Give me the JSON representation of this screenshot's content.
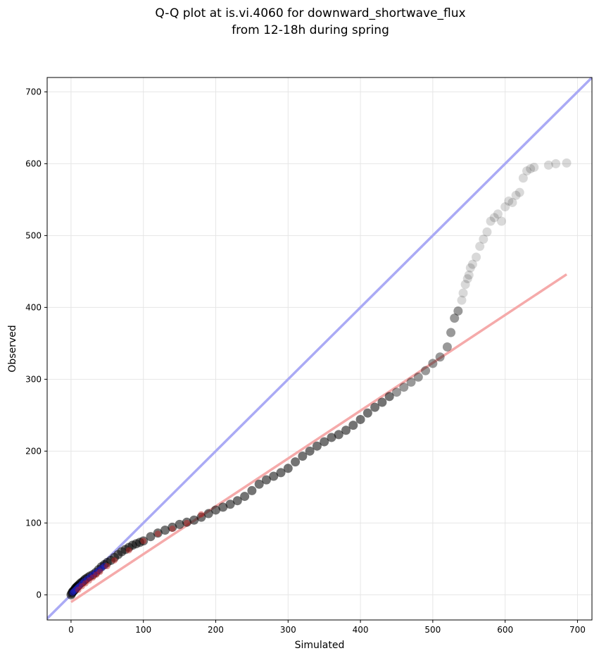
{
  "chart_data": {
    "type": "scatter",
    "title_line1": "Q-Q plot at is.vi.4060 for downward_shortwave_flux",
    "title_line2": "from 12-18h during spring",
    "xlabel": "Simulated",
    "ylabel": "Observed",
    "xlim": [
      -33,
      720
    ],
    "ylim": [
      -35,
      720
    ],
    "xticks": [
      0,
      100,
      200,
      300,
      400,
      500,
      600,
      700
    ],
    "yticks": [
      0,
      100,
      200,
      300,
      400,
      500,
      600,
      700
    ],
    "xtick_labels": [
      "0",
      "100",
      "200",
      "300",
      "400",
      "500",
      "600",
      "700"
    ],
    "ytick_labels": [
      "0",
      "100",
      "200",
      "300",
      "400",
      "500",
      "600",
      "700"
    ],
    "grid": true,
    "reference_line": {
      "x": [
        -33,
        720
      ],
      "y": [
        -33,
        720
      ],
      "color": "#aaaaf5"
    },
    "fit_line": {
      "x": [
        0,
        685
      ],
      "y": [
        -10,
        446
      ],
      "color": "#f5aaaa"
    },
    "points": {
      "x": [
        0,
        1,
        2,
        3,
        4,
        5,
        6,
        7,
        8,
        9,
        10,
        12,
        14,
        16,
        18,
        20,
        23,
        26,
        30,
        34,
        38,
        42,
        46,
        50,
        55,
        60,
        65,
        70,
        75,
        80,
        85,
        90,
        95,
        100,
        110,
        120,
        130,
        140,
        150,
        160,
        170,
        180,
        190,
        200,
        210,
        220,
        230,
        240,
        250,
        260,
        270,
        280,
        290,
        300,
        310,
        320,
        330,
        340,
        350,
        360,
        370,
        380,
        390,
        400,
        410,
        420,
        430,
        440,
        450,
        460,
        470,
        480,
        490,
        500,
        510,
        520,
        525,
        530,
        535,
        540,
        542,
        545,
        548,
        550,
        552,
        555,
        560,
        565,
        570,
        575,
        580,
        585,
        590,
        595,
        600,
        605,
        610,
        615,
        620,
        625,
        630,
        635,
        640,
        660,
        670,
        685
      ],
      "y": [
        0,
        2,
        4,
        5,
        6,
        7,
        9,
        10,
        11,
        12,
        13,
        15,
        17,
        18,
        20,
        22,
        24,
        26,
        28,
        31,
        35,
        39,
        42,
        45,
        48,
        52,
        56,
        60,
        63,
        66,
        69,
        71,
        73,
        75,
        81,
        86,
        90,
        94,
        98,
        101,
        104,
        108,
        113,
        118,
        122,
        126,
        131,
        137,
        145,
        154,
        160,
        165,
        170,
        176,
        185,
        193,
        200,
        207,
        213,
        219,
        223,
        229,
        236,
        244,
        253,
        261,
        268,
        276,
        282,
        289,
        296,
        303,
        312,
        322,
        331,
        345,
        365,
        385,
        395,
        410,
        420,
        432,
        440,
        445,
        455,
        460,
        470,
        485,
        495,
        505,
        520,
        525,
        530,
        520,
        540,
        548,
        546,
        556,
        560,
        580,
        590,
        593,
        595,
        598,
        600,
        601
      ]
    },
    "highlight_points": {
      "blue": {
        "x": [
          2,
          4,
          6,
          8,
          10,
          12,
          15,
          18,
          22,
          26,
          30,
          34,
          38,
          42,
          46
        ],
        "y": [
          3,
          5,
          7,
          9,
          11,
          13,
          16,
          19,
          22,
          25,
          28,
          31,
          34,
          37,
          40
        ]
      },
      "red": {
        "x": [
          10,
          15,
          20,
          25,
          30,
          35,
          40,
          50,
          60,
          80,
          100,
          120,
          140,
          160,
          180
        ],
        "y": [
          7,
          12,
          16,
          20,
          24,
          28,
          32,
          40,
          48,
          62,
          75,
          85,
          92,
          100,
          112
        ]
      }
    },
    "colors": {
      "point": "#000000",
      "blue_points": "#1f1fbf",
      "red_points": "#c41a1a"
    }
  }
}
